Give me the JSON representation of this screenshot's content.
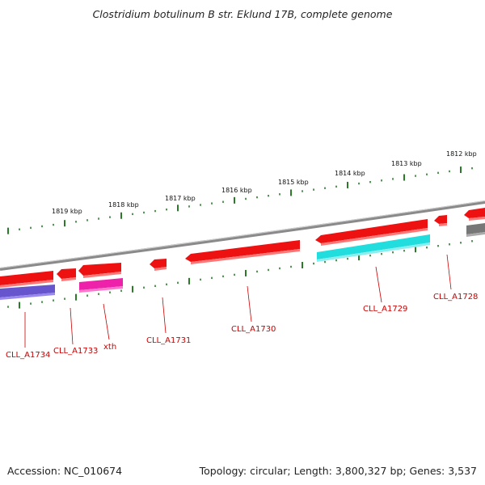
{
  "title": "Clostridium botulinum B str. Eklund 17B, complete genome",
  "footer": {
    "accession": "Accession: NC_010674",
    "summary": "Topology: circular; Length: 3,800,327 bp; Genes: 3,537"
  },
  "ruler": {
    "labels": [
      "1819 kbp",
      "1818 kbp",
      "1817 kbp",
      "1816 kbp",
      "1815 kbp",
      "1814 kbp",
      "1813 kbp",
      "1812 kbp"
    ]
  },
  "genes": [
    {
      "name": "CLL_A1734",
      "color": "#ee1111"
    },
    {
      "name": "CLL_A1733",
      "color": "#ee1111"
    },
    {
      "name": "xth",
      "color": "#ee1111"
    },
    {
      "name": "CLL_A1731",
      "color": "#ee1111"
    },
    {
      "name": "CLL_A1730",
      "color": "#ee1111"
    },
    {
      "name": "CLL_A1729",
      "color": "#ee1111"
    },
    {
      "name": "CLL_A1728",
      "color": "#ee1111"
    }
  ],
  "colors": {
    "backbone": "#8a8a8a",
    "ticks": "#2a7a2a",
    "gene_forward": "#ee1111",
    "cog_purple": "#6655cc",
    "cog_magenta": "#ee22aa",
    "cog_cyan": "#22dddd",
    "cog_gray": "#777777",
    "label": "#cc0000"
  }
}
